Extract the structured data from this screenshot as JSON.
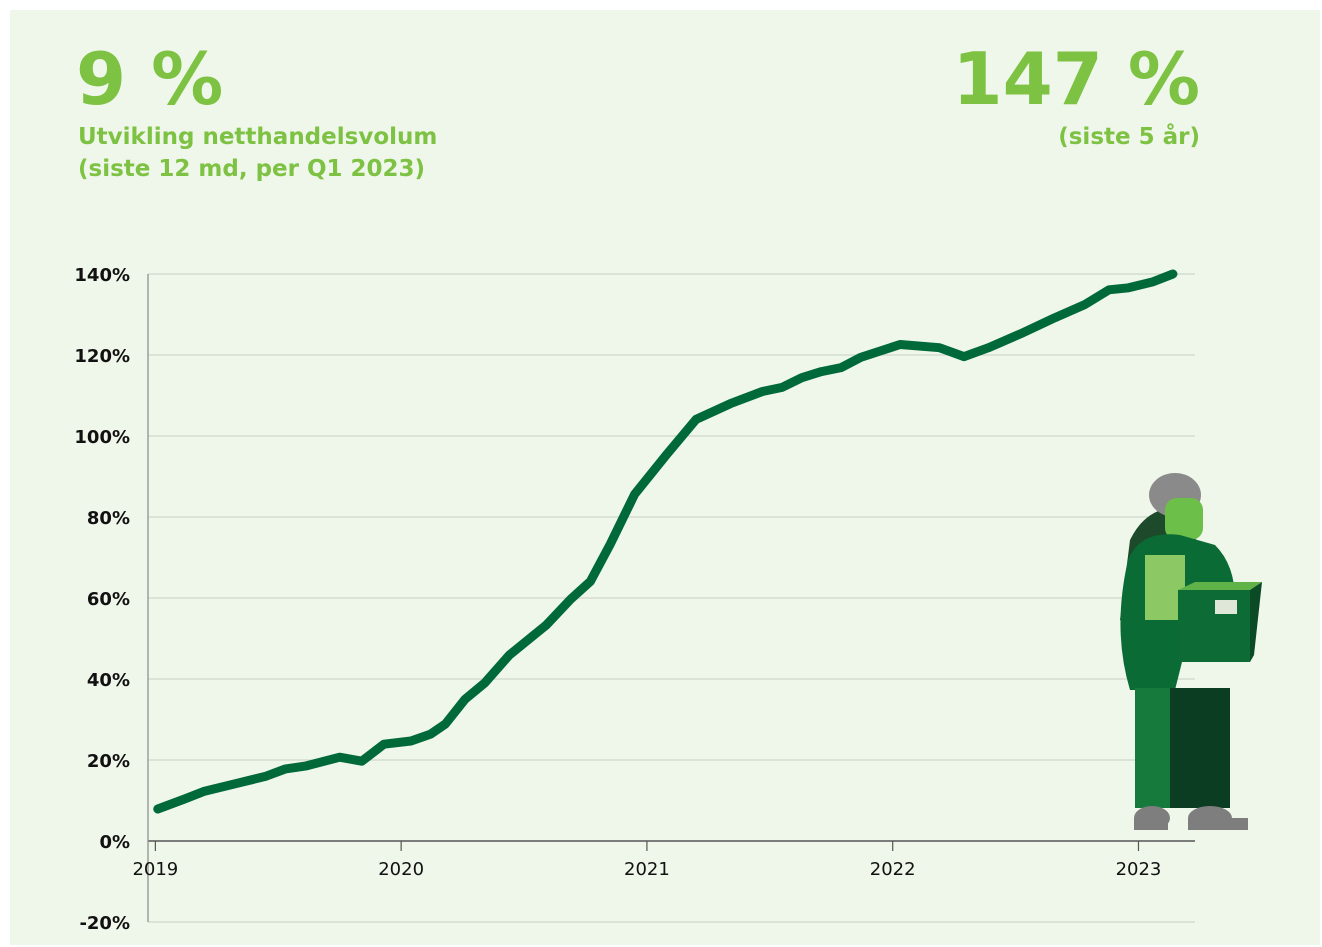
{
  "chart_data": {
    "type": "line",
    "title": "9 %",
    "subtitle": [
      "Utvikling netthandelsvolum",
      "(siste 12 md, per Q1 2023)"
    ],
    "annotations": [
      {
        "text": "147 %"
      },
      {
        "text": "(siste 5 år)"
      }
    ],
    "x": [
      2019.01,
      2019.12,
      2019.2,
      2019.35,
      2019.45,
      2019.53,
      2019.61,
      2019.75,
      2019.84,
      2019.93,
      2020.04,
      2020.12,
      2020.18,
      2020.26,
      2020.34,
      2020.44,
      2020.59,
      2020.69,
      2020.77,
      2020.85,
      2020.95,
      2021.08,
      2021.2,
      2021.34,
      2021.47,
      2021.55,
      2021.63,
      2021.71,
      2021.79,
      2021.87,
      2022.03,
      2022.19,
      2022.29,
      2022.39,
      2022.53,
      2022.66,
      2022.78,
      2022.88,
      2022.96,
      2023.06,
      2023.14
    ],
    "series": [
      {
        "color": "#00693a",
        "values": [
          7.9,
          10.4,
          12.3,
          14.5,
          16,
          17.8,
          18.5,
          20.7,
          19.7,
          23.9,
          24.7,
          26.4,
          28.9,
          35,
          39,
          45.9,
          53.3,
          59.7,
          64.1,
          73.2,
          85.6,
          95.4,
          104.1,
          108,
          111,
          112,
          114.4,
          115.9,
          116.9,
          119.4,
          122.6,
          121.8,
          119.6,
          121.8,
          125.5,
          129.2,
          132.4,
          136.1,
          136.6,
          138.1,
          140
        ]
      }
    ],
    "xlim": [
      2018.97,
      2023.23
    ],
    "xticks": [
      2019,
      2020,
      2021,
      2022,
      2023
    ],
    "ylim": [
      -20,
      140
    ],
    "yticks": [
      {
        "value": -20,
        "label": "-20%"
      },
      {
        "value": 0,
        "label": "0%"
      },
      {
        "value": 20,
        "label": "20%"
      },
      {
        "value": 40,
        "label": "40%"
      },
      {
        "value": 60,
        "label": "60%"
      },
      {
        "value": 80,
        "label": "80%"
      },
      {
        "value": 100,
        "label": "100%"
      },
      {
        "value": 120,
        "label": "120%"
      },
      {
        "value": 140,
        "label": "140%"
      }
    ],
    "grid": true
  }
}
